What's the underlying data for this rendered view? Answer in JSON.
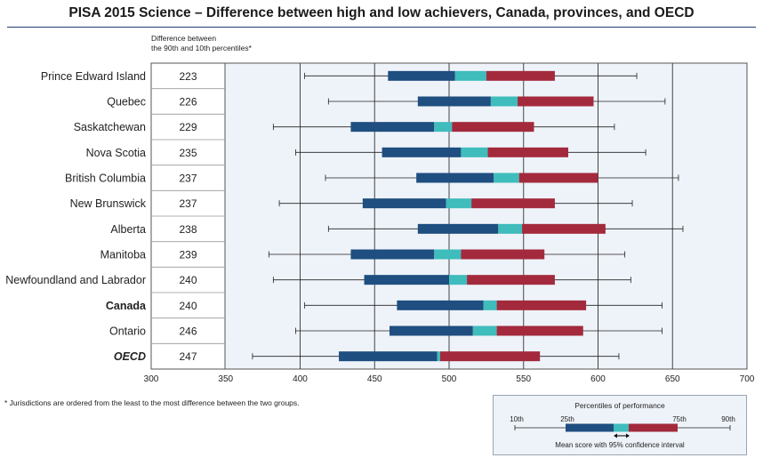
{
  "title": "PISA 2015 Science – Difference between high and low achievers, Canada, provinces, and OECD",
  "column_header": [
    "Difference between",
    "the 90th and 10th percentiles*"
  ],
  "footnote": "* Jurisdictions are ordered from the least to the most difference between the two groups.",
  "colors": {
    "low_segment": "#1f4e80",
    "ci_segment": "#3fbcbc",
    "high_segment": "#a32a3c",
    "plot_background": "#eef3f9",
    "grid": "#444444",
    "rule": "#1f3d6b"
  },
  "chart_data": {
    "type": "bar",
    "orientation": "horizontal",
    "x_axis": {
      "min": 300,
      "max": 700,
      "ticks": [
        300,
        350,
        400,
        450,
        500,
        550,
        600,
        650,
        700
      ]
    },
    "grid": "vertical",
    "series_meaning": [
      "10th",
      "25th",
      "ci_low",
      "ci_high",
      "75th",
      "90th"
    ],
    "rows": [
      {
        "label": "Prince Edward Island",
        "difference": 223,
        "p10": 403,
        "p25": 459,
        "ci_low": 504,
        "ci_high": 525,
        "p75": 571,
        "p90": 626,
        "bold": false,
        "italic": false
      },
      {
        "label": "Quebec",
        "difference": 226,
        "p10": 419,
        "p25": 479,
        "ci_low": 528,
        "ci_high": 546,
        "p75": 597,
        "p90": 645,
        "bold": false,
        "italic": false
      },
      {
        "label": "Saskatchewan",
        "difference": 229,
        "p10": 382,
        "p25": 434,
        "ci_low": 490,
        "ci_high": 502,
        "p75": 557,
        "p90": 611,
        "bold": false,
        "italic": false
      },
      {
        "label": "Nova Scotia",
        "difference": 235,
        "p10": 397,
        "p25": 455,
        "ci_low": 508,
        "ci_high": 526,
        "p75": 580,
        "p90": 632,
        "bold": false,
        "italic": false
      },
      {
        "label": "British Columbia",
        "difference": 237,
        "p10": 417,
        "p25": 478,
        "ci_low": 530,
        "ci_high": 547,
        "p75": 600,
        "p90": 654,
        "bold": false,
        "italic": false
      },
      {
        "label": "New Brunswick",
        "difference": 237,
        "p10": 386,
        "p25": 442,
        "ci_low": 498,
        "ci_high": 515,
        "p75": 571,
        "p90": 623,
        "bold": false,
        "italic": false
      },
      {
        "label": "Alberta",
        "difference": 238,
        "p10": 419,
        "p25": 479,
        "ci_low": 533,
        "ci_high": 549,
        "p75": 605,
        "p90": 657,
        "bold": false,
        "italic": false
      },
      {
        "label": "Manitoba",
        "difference": 239,
        "p10": 379,
        "p25": 434,
        "ci_low": 490,
        "ci_high": 508,
        "p75": 564,
        "p90": 618,
        "bold": false,
        "italic": false
      },
      {
        "label": "Newfoundland and Labrador",
        "difference": 240,
        "p10": 382,
        "p25": 443,
        "ci_low": 500,
        "ci_high": 512,
        "p75": 571,
        "p90": 622,
        "bold": false,
        "italic": false
      },
      {
        "label": "Canada",
        "difference": 240,
        "p10": 403,
        "p25": 465,
        "ci_low": 523,
        "ci_high": 532,
        "p75": 592,
        "p90": 643,
        "bold": true,
        "italic": false
      },
      {
        "label": "Ontario",
        "difference": 246,
        "p10": 397,
        "p25": 460,
        "ci_low": 516,
        "ci_high": 532,
        "p75": 590,
        "p90": 643,
        "bold": false,
        "italic": false
      },
      {
        "label": "OECD",
        "difference": 247,
        "p10": 368,
        "p25": 426,
        "ci_low": 492,
        "ci_high": 494,
        "p75": 561,
        "p90": 614,
        "bold": true,
        "italic": true
      }
    ]
  },
  "legend": {
    "title": "Percentiles of performance",
    "labels": [
      "10th",
      "25th",
      "75th",
      "90th"
    ],
    "caption": "Mean score with 95% confidence interval"
  }
}
